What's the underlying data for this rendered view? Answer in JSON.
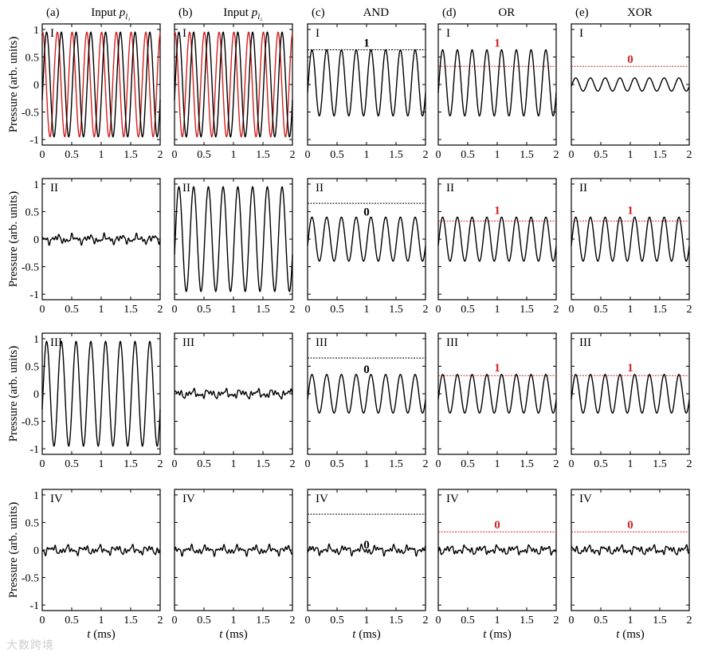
{
  "figure": {
    "columns": [
      {
        "tag": "(a)",
        "title": "Input",
        "symbol": "p",
        "subscript": "I₁"
      },
      {
        "tag": "(b)",
        "title": "Input",
        "symbol": "p",
        "subscript": "I₂"
      },
      {
        "tag": "(c)",
        "title": "AND",
        "symbol": "",
        "subscript": ""
      },
      {
        "tag": "(d)",
        "title": "OR",
        "symbol": "",
        "subscript": ""
      },
      {
        "tag": "(e)",
        "title": "XOR",
        "symbol": "",
        "subscript": ""
      }
    ],
    "row_labels": [
      "I",
      "II",
      "III",
      "IV"
    ],
    "ylabel": "Pressure (arb. units)",
    "xlabel_symbol": "t",
    "xlabel_unit": "(ms)",
    "x_ticks": [
      "0",
      "0.5",
      "1",
      "1.5",
      "2"
    ],
    "y_ticks": [
      "1",
      "0.5",
      "0",
      "-0.5",
      "-1"
    ]
  },
  "colors": {
    "trace": "#000000",
    "reference": "#d42020",
    "threshold_and": "#000000",
    "threshold_or_xor": "#d42020"
  },
  "watermark": "大数跨境",
  "chart_data": {
    "type": "line",
    "layout": "grid 4 rows x 5 columns",
    "xlim": [
      0,
      2
    ],
    "ylim": [
      -1.1,
      1.1
    ],
    "frequency_khz": 4,
    "panels": [
      {
        "col": 0,
        "row": 0,
        "signal": {
          "amplitude": 0.95,
          "offset": 0,
          "noise": false
        },
        "reference": {
          "amplitude": 0.95,
          "phase": 1.4
        }
      },
      {
        "col": 0,
        "row": 1,
        "signal": {
          "amplitude": 0,
          "offset": 0,
          "noise": true
        }
      },
      {
        "col": 0,
        "row": 2,
        "signal": {
          "amplitude": 0.95,
          "offset": 0,
          "noise": false
        }
      },
      {
        "col": 0,
        "row": 3,
        "signal": {
          "amplitude": 0,
          "offset": 0,
          "noise": true
        }
      },
      {
        "col": 1,
        "row": 0,
        "signal": {
          "amplitude": 0.95,
          "offset": 0,
          "noise": false
        },
        "reference": {
          "amplitude": 0.95,
          "phase": 1.4
        }
      },
      {
        "col": 1,
        "row": 1,
        "signal": {
          "amplitude": 0.95,
          "offset": 0,
          "noise": false
        }
      },
      {
        "col": 1,
        "row": 2,
        "signal": {
          "amplitude": 0,
          "offset": 0,
          "noise": true
        }
      },
      {
        "col": 1,
        "row": 3,
        "signal": {
          "amplitude": 0,
          "offset": 0,
          "noise": true
        }
      },
      {
        "col": 2,
        "row": 0,
        "signal": {
          "amplitude": 0.6,
          "offset": 0.03,
          "noise": false
        },
        "threshold": {
          "y": 0.63,
          "label": "1",
          "color": "#000000"
        }
      },
      {
        "col": 2,
        "row": 1,
        "signal": {
          "amplitude": 0.4,
          "offset": 0.0,
          "noise": false
        },
        "threshold": {
          "y": 0.65,
          "label": "0",
          "color": "#000000"
        }
      },
      {
        "col": 2,
        "row": 2,
        "signal": {
          "amplitude": 0.35,
          "offset": 0.0,
          "noise": false
        },
        "threshold": {
          "y": 0.65,
          "label": "0",
          "color": "#000000"
        }
      },
      {
        "col": 2,
        "row": 3,
        "signal": {
          "amplitude": 0,
          "offset": 0,
          "noise": true
        },
        "threshold": {
          "y": 0.65,
          "label": "0",
          "color": "#000000"
        }
      },
      {
        "col": 3,
        "row": 0,
        "signal": {
          "amplitude": 0.6,
          "offset": 0.03,
          "noise": false
        },
        "threshold": {
          "y": 0.33,
          "label": "1",
          "color": "#d42020"
        }
      },
      {
        "col": 3,
        "row": 1,
        "signal": {
          "amplitude": 0.4,
          "offset": 0.0,
          "noise": false
        },
        "threshold": {
          "y": 0.33,
          "label": "1",
          "color": "#d42020"
        }
      },
      {
        "col": 3,
        "row": 2,
        "signal": {
          "amplitude": 0.35,
          "offset": 0.0,
          "noise": false
        },
        "threshold": {
          "y": 0.33,
          "label": "1",
          "color": "#d42020"
        }
      },
      {
        "col": 3,
        "row": 3,
        "signal": {
          "amplitude": 0,
          "offset": 0,
          "noise": true
        },
        "threshold": {
          "y": 0.33,
          "label": "0",
          "color": "#d42020"
        }
      },
      {
        "col": 4,
        "row": 0,
        "signal": {
          "amplitude": 0.12,
          "offset": 0.0,
          "noise": false
        },
        "threshold": {
          "y": 0.33,
          "label": "0",
          "color": "#d42020"
        }
      },
      {
        "col": 4,
        "row": 1,
        "signal": {
          "amplitude": 0.4,
          "offset": 0.0,
          "noise": false
        },
        "threshold": {
          "y": 0.33,
          "label": "1",
          "color": "#d42020"
        }
      },
      {
        "col": 4,
        "row": 2,
        "signal": {
          "amplitude": 0.35,
          "offset": 0.0,
          "noise": false
        },
        "threshold": {
          "y": 0.33,
          "label": "1",
          "color": "#d42020"
        }
      },
      {
        "col": 4,
        "row": 3,
        "signal": {
          "amplitude": 0,
          "offset": 0,
          "noise": true
        },
        "threshold": {
          "y": 0.33,
          "label": "0",
          "color": "#d42020"
        }
      }
    ]
  }
}
